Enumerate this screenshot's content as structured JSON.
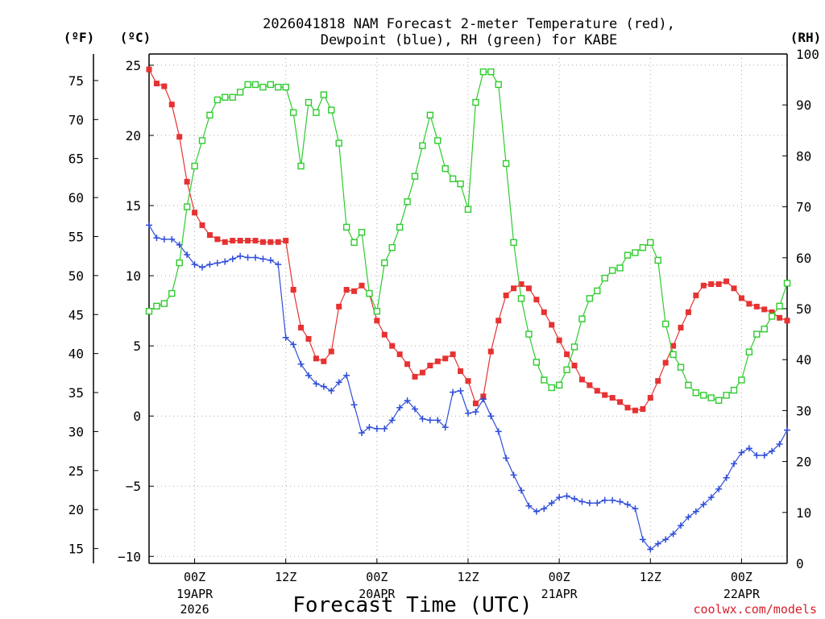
{
  "chart_data": {
    "type": "line",
    "title_line1": "2026041818 NAM Forecast 2-meter Temperature (red),",
    "title_line2": "Dewpoint (blue), RH (green) for KABE",
    "unit_f": "(ºF)",
    "unit_c": "(ºC)",
    "unit_rh": "(RH)",
    "xlabel": "Forecast Time (UTC)",
    "credit": "coolwx.com/models",
    "x_hours_range": [
      0,
      84
    ],
    "ylim_c": [
      -10.5,
      25.8
    ],
    "ylim_rh": [
      0,
      100
    ],
    "ylim_f": [
      13.1,
      78.4
    ],
    "y_ticks_c": [
      -10,
      -5,
      0,
      5,
      10,
      15,
      20,
      25
    ],
    "y_ticks_f": [
      15,
      20,
      25,
      30,
      35,
      40,
      45,
      50,
      55,
      60,
      65,
      70,
      75
    ],
    "y_ticks_rh": [
      0,
      10,
      20,
      30,
      40,
      50,
      60,
      70,
      80,
      90,
      100
    ],
    "x_ticks": [
      {
        "hour": 6,
        "line1": "00Z",
        "line2": "19APR",
        "line3": "2026"
      },
      {
        "hour": 18,
        "line1": "12Z",
        "line2": "",
        "line3": ""
      },
      {
        "hour": 30,
        "line1": "00Z",
        "line2": "20APR",
        "line3": ""
      },
      {
        "hour": 42,
        "line1": "12Z",
        "line2": "",
        "line3": ""
      },
      {
        "hour": 54,
        "line1": "00Z",
        "line2": "21APR",
        "line3": ""
      },
      {
        "hour": 66,
        "line1": "12Z",
        "line2": "",
        "line3": ""
      },
      {
        "hour": 78,
        "line1": "00Z",
        "line2": "22APR",
        "line3": ""
      }
    ],
    "series": [
      {
        "name": "2-meter Temperature",
        "unit": "C",
        "color": "#e63232",
        "marker": "square-filled",
        "values": [
          24.7,
          23.7,
          23.5,
          22.2,
          19.9,
          16.7,
          14.5,
          13.6,
          12.9,
          12.6,
          12.4,
          12.5,
          12.5,
          12.5,
          12.5,
          12.4,
          12.4,
          12.4,
          12.5,
          9.0,
          6.3,
          5.5,
          4.1,
          3.9,
          4.6,
          7.8,
          9.0,
          8.9,
          9.3,
          8.7,
          6.8,
          5.8,
          5.0,
          4.4,
          3.7,
          2.8,
          3.1,
          3.6,
          3.9,
          4.1,
          4.4,
          3.2,
          2.5,
          0.9,
          1.4,
          4.6,
          6.8,
          8.6,
          9.1,
          9.4,
          9.1,
          8.3,
          7.4,
          6.5,
          5.4,
          4.4,
          3.6,
          2.6,
          2.2,
          1.8,
          1.5,
          1.3,
          1.0,
          0.6,
          0.4,
          0.5,
          1.3,
          2.5,
          3.8,
          5.0,
          6.3,
          7.4,
          8.6,
          9.3,
          9.4,
          9.4,
          9.6,
          9.1,
          8.4,
          8.0,
          7.8,
          7.6,
          7.4,
          7.0,
          6.8
        ]
      },
      {
        "name": "Dewpoint",
        "unit": "C",
        "color": "#2f4ed8",
        "marker": "plus",
        "values": [
          13.6,
          12.7,
          12.6,
          12.6,
          12.2,
          11.5,
          10.8,
          10.6,
          10.8,
          10.9,
          11.0,
          11.2,
          11.4,
          11.3,
          11.3,
          11.2,
          11.1,
          10.8,
          5.6,
          5.1,
          3.7,
          2.9,
          2.3,
          2.1,
          1.8,
          2.4,
          2.9,
          0.8,
          -1.2,
          -0.8,
          -0.9,
          -0.9,
          -0.3,
          0.6,
          1.1,
          0.5,
          -0.2,
          -0.3,
          -0.3,
          -0.8,
          1.7,
          1.8,
          0.2,
          0.3,
          1.2,
          0.0,
          -1.1,
          -3.0,
          -4.2,
          -5.3,
          -6.4,
          -6.8,
          -6.6,
          -6.2,
          -5.8,
          -5.7,
          -5.9,
          -6.1,
          -6.2,
          -6.2,
          -6.0,
          -6.0,
          -6.1,
          -6.3,
          -6.6,
          -8.8,
          -9.5,
          -9.1,
          -8.8,
          -8.4,
          -7.8,
          -7.2,
          -6.8,
          -6.3,
          -5.8,
          -5.2,
          -4.4,
          -3.4,
          -2.6,
          -2.3,
          -2.8,
          -2.8,
          -2.5,
          -2.0,
          -1.0
        ]
      },
      {
        "name": "Relative Humidity",
        "unit": "%",
        "color": "#2ecb2e",
        "marker": "square-open",
        "values": [
          49.5,
          50.5,
          51.0,
          53.0,
          59.0,
          70.0,
          78.0,
          83.0,
          88.0,
          91.0,
          91.5,
          91.5,
          92.5,
          94.0,
          94.0,
          93.5,
          94.0,
          93.5,
          93.5,
          88.5,
          78.0,
          90.5,
          88.5,
          92.0,
          89.0,
          82.5,
          66.0,
          63.0,
          65.0,
          53.0,
          49.5,
          59.0,
          62.0,
          66.0,
          71.0,
          76.0,
          82.0,
          88.0,
          83.0,
          77.5,
          75.5,
          74.5,
          69.5,
          90.5,
          96.5,
          96.5,
          94.0,
          78.5,
          63.0,
          52.0,
          45.0,
          39.5,
          36.0,
          34.5,
          35.0,
          38.0,
          42.5,
          48.0,
          52.0,
          53.5,
          56.0,
          57.5,
          58.0,
          60.5,
          61.0,
          62.0,
          63.0,
          59.5,
          47.0,
          41.0,
          38.5,
          35.0,
          33.5,
          33.0,
          32.5,
          32.0,
          33.0,
          34.0,
          36.0,
          41.5,
          45.0,
          46.0,
          48.5,
          50.5,
          55.0
        ]
      }
    ]
  }
}
